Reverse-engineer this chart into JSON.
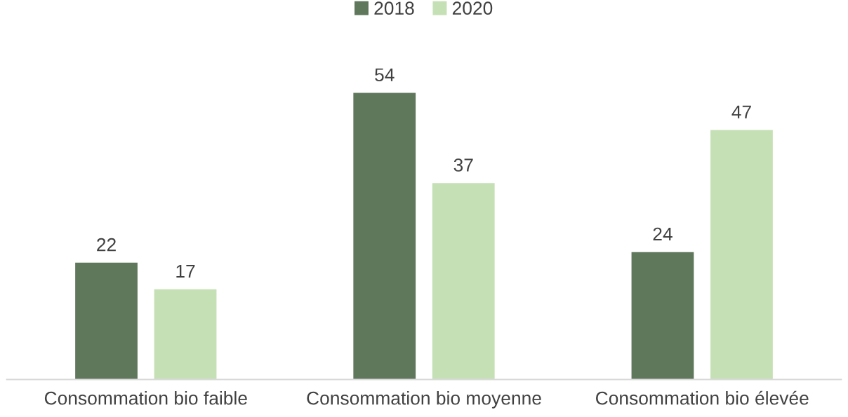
{
  "chart_data": {
    "type": "bar",
    "categories": [
      "Consommation bio faible",
      "Consommation bio moyenne",
      "Consommation bio élevée"
    ],
    "series": [
      {
        "name": "2018",
        "color": "#5f775b",
        "values": [
          22,
          54,
          24
        ]
      },
      {
        "name": "2020",
        "color": "#c5e0b4",
        "values": [
          17,
          37,
          47
        ]
      }
    ],
    "tick_labels": "x",
    "data_labels": true,
    "legend": "top",
    "grid": false
  }
}
